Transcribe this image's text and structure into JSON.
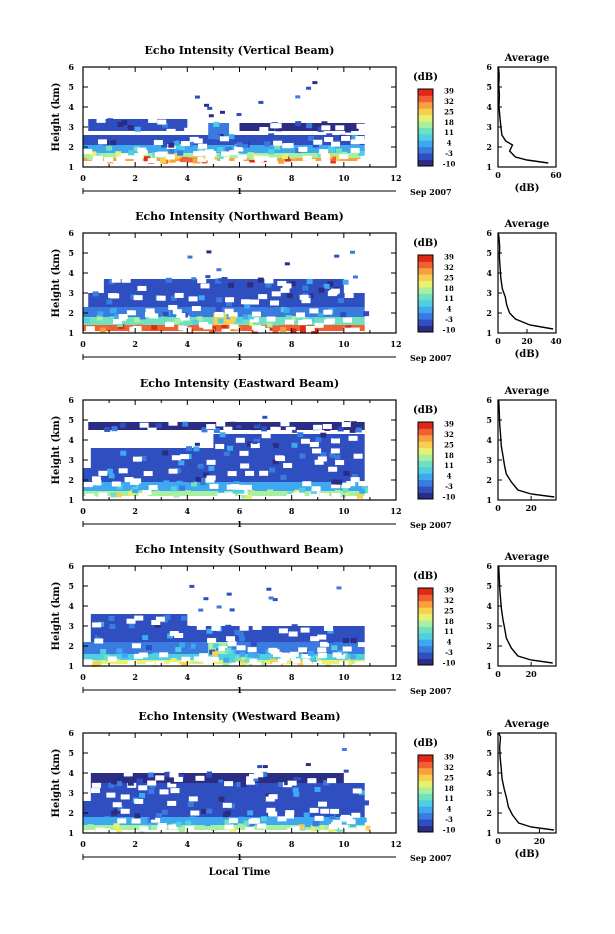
{
  "xlabel_common": "Local Time",
  "date_label": "Sep 2007",
  "colorbar": {
    "unit": "(dB)",
    "ticks": [
      "39",
      "32",
      "25",
      "18",
      "11",
      "4",
      "-3",
      "-10"
    ],
    "colors": [
      "#2b2c83",
      "#2f4fc0",
      "#3b7be0",
      "#3ea8f0",
      "#4fcfe0",
      "#6fe0c0",
      "#a8f0a0",
      "#e8f070",
      "#f8d050",
      "#f8a040",
      "#f06030",
      "#e02818"
    ]
  },
  "chart_data": [
    {
      "type": "heatmap",
      "title": "Echo Intensity (Vertical Beam)",
      "ylabel": "Height (km)",
      "xlim": [
        0,
        12
      ],
      "ylim": [
        1,
        6
      ],
      "xticks": [
        "0",
        "2",
        "4",
        "6",
        "8",
        "10",
        "12"
      ],
      "yticks": [
        "1",
        "2",
        "3",
        "4",
        "5",
        "6"
      ],
      "day_marker": "1",
      "bands": [
        {
          "y0": 1.3,
          "y1": 1.45,
          "x0": 0.0,
          "x1": 10.8,
          "level": 9
        },
        {
          "y0": 1.45,
          "y1": 1.7,
          "x0": 0.0,
          "x1": 10.8,
          "level": 6
        },
        {
          "y0": 1.7,
          "y1": 2.1,
          "x0": 0.0,
          "x1": 10.8,
          "level": 3
        },
        {
          "y0": 2.1,
          "y1": 2.6,
          "x0": 0.0,
          "x1": 10.8,
          "level": 1
        },
        {
          "y0": 2.8,
          "y1": 3.4,
          "x0": 0.2,
          "x1": 4.0,
          "level": 1
        },
        {
          "y0": 2.4,
          "y1": 3.2,
          "x0": 4.8,
          "x1": 5.6,
          "level": 2
        },
        {
          "y0": 2.8,
          "y1": 3.2,
          "x0": 6.0,
          "x1": 10.8,
          "level": 0
        }
      ],
      "average": {
        "xlim": [
          0,
          60
        ],
        "xticks": [
          "0",
          "60"
        ],
        "xlabel": "(dB)",
        "yticks": [
          "1",
          "2",
          "3",
          "4",
          "5",
          "6"
        ],
        "profile": [
          [
            52,
            1.2
          ],
          [
            30,
            1.35
          ],
          [
            18,
            1.5
          ],
          [
            12,
            1.8
          ],
          [
            15,
            2.1
          ],
          [
            8,
            2.3
          ],
          [
            4,
            2.6
          ],
          [
            3,
            3.0
          ],
          [
            2,
            3.5
          ],
          [
            1,
            4.0
          ],
          [
            1.5,
            4.6
          ],
          [
            0.8,
            5.1
          ],
          [
            1.2,
            5.6
          ],
          [
            0.5,
            6.0
          ]
        ]
      }
    },
    {
      "type": "heatmap",
      "title": "Echo Intensity (Northward Beam)",
      "ylabel": "Height (km)",
      "xlim": [
        0,
        12
      ],
      "ylim": [
        1,
        6
      ],
      "xticks": [
        "0",
        "2",
        "4",
        "6",
        "8",
        "10",
        "12"
      ],
      "yticks": [
        "1",
        "2",
        "3",
        "4",
        "5",
        "6"
      ],
      "day_marker": "1",
      "bands": [
        {
          "y0": 1.1,
          "y1": 1.4,
          "x0": 0.0,
          "x1": 10.8,
          "level": 10
        },
        {
          "y0": 1.4,
          "y1": 1.8,
          "x0": 0.0,
          "x1": 10.8,
          "level": 5
        },
        {
          "y0": 1.8,
          "y1": 2.3,
          "x0": 0.0,
          "x1": 10.8,
          "level": 2
        },
        {
          "y0": 2.3,
          "y1": 3.0,
          "x0": 0.2,
          "x1": 10.8,
          "level": 1
        },
        {
          "y0": 3.0,
          "y1": 3.7,
          "x0": 0.8,
          "x1": 10.0,
          "level": 1
        },
        {
          "y0": 1.4,
          "y1": 2.0,
          "x0": 5.0,
          "x1": 5.8,
          "level": 8
        }
      ],
      "average": {
        "xlim": [
          0,
          40
        ],
        "xticks": [
          "0",
          "20",
          "40"
        ],
        "xlabel": "(dB)",
        "yticks": [
          "1",
          "2",
          "3",
          "4",
          "5",
          "6"
        ],
        "profile": [
          [
            38,
            1.2
          ],
          [
            22,
            1.4
          ],
          [
            12,
            1.7
          ],
          [
            8,
            2.0
          ],
          [
            6,
            2.4
          ],
          [
            5,
            2.8
          ],
          [
            3,
            3.2
          ],
          [
            2,
            3.7
          ],
          [
            1.5,
            4.2
          ],
          [
            1,
            4.8
          ],
          [
            1.2,
            5.3
          ],
          [
            0.6,
            5.8
          ],
          [
            0.3,
            6.0
          ]
        ]
      }
    },
    {
      "type": "heatmap",
      "title": "Echo Intensity (Eastward Beam)",
      "ylabel": "Height (km)",
      "xlim": [
        0,
        12
      ],
      "ylim": [
        1,
        6
      ],
      "xticks": [
        "0",
        "2",
        "4",
        "6",
        "8",
        "10",
        "12"
      ],
      "yticks": [
        "1",
        "2",
        "3",
        "4",
        "5",
        "6"
      ],
      "day_marker": "1",
      "bands": [
        {
          "y0": 1.2,
          "y1": 1.45,
          "x0": 0.0,
          "x1": 10.8,
          "level": 6
        },
        {
          "y0": 1.45,
          "y1": 1.9,
          "x0": 0.0,
          "x1": 10.8,
          "level": 3
        },
        {
          "y0": 1.9,
          "y1": 2.6,
          "x0": 0.0,
          "x1": 10.8,
          "level": 1
        },
        {
          "y0": 2.6,
          "y1": 3.6,
          "x0": 0.3,
          "x1": 10.8,
          "level": 1
        },
        {
          "y0": 3.6,
          "y1": 4.3,
          "x0": 5.0,
          "x1": 10.8,
          "level": 1
        },
        {
          "y0": 4.5,
          "y1": 4.9,
          "x0": 0.2,
          "x1": 10.8,
          "level": 0
        }
      ],
      "average": {
        "xlim": [
          0,
          35
        ],
        "xticks": [
          "0",
          "20"
        ],
        "xlabel": "",
        "yticks": [
          "1",
          "2",
          "3",
          "4",
          "5",
          "6"
        ],
        "profile": [
          [
            34,
            1.15
          ],
          [
            20,
            1.3
          ],
          [
            12,
            1.5
          ],
          [
            8,
            1.9
          ],
          [
            5,
            2.3
          ],
          [
            4,
            2.7
          ],
          [
            3,
            3.2
          ],
          [
            2,
            3.7
          ],
          [
            1.5,
            4.3
          ],
          [
            1,
            4.8
          ],
          [
            0.8,
            5.4
          ],
          [
            0.4,
            6.0
          ]
        ]
      }
    },
    {
      "type": "heatmap",
      "title": "Echo Intensity (Southward Beam)",
      "ylabel": "Height (km)",
      "xlim": [
        0,
        12
      ],
      "ylim": [
        1,
        6
      ],
      "xticks": [
        "0",
        "2",
        "4",
        "6",
        "8",
        "10",
        "12"
      ],
      "yticks": [
        "1",
        "2",
        "3",
        "4",
        "5",
        "6"
      ],
      "day_marker": "1",
      "bands": [
        {
          "y0": 1.1,
          "y1": 1.3,
          "x0": 0.0,
          "x1": 10.8,
          "level": 7
        },
        {
          "y0": 1.3,
          "y1": 1.6,
          "x0": 0.0,
          "x1": 10.8,
          "level": 4
        },
        {
          "y0": 1.6,
          "y1": 2.2,
          "x0": 0.0,
          "x1": 10.8,
          "level": 2
        },
        {
          "y0": 2.2,
          "y1": 3.0,
          "x0": 0.3,
          "x1": 10.8,
          "level": 1
        },
        {
          "y0": 3.0,
          "y1": 3.6,
          "x0": 0.3,
          "x1": 4.0,
          "level": 1
        },
        {
          "y0": 1.6,
          "y1": 2.2,
          "x0": 4.8,
          "x1": 5.6,
          "level": 6
        }
      ],
      "average": {
        "xlim": [
          0,
          35
        ],
        "xticks": [
          "0",
          "20"
        ],
        "xlabel": "",
        "yticks": [
          "1",
          "2",
          "3",
          "4",
          "5",
          "6"
        ],
        "profile": [
          [
            33,
            1.15
          ],
          [
            20,
            1.3
          ],
          [
            12,
            1.5
          ],
          [
            8,
            1.9
          ],
          [
            5,
            2.4
          ],
          [
            4,
            2.9
          ],
          [
            3,
            3.3
          ],
          [
            2,
            3.9
          ],
          [
            1.5,
            4.4
          ],
          [
            1,
            4.9
          ],
          [
            0.7,
            5.5
          ],
          [
            0.4,
            6.0
          ]
        ]
      }
    },
    {
      "type": "heatmap",
      "title": "Echo Intensity (Westward Beam)",
      "ylabel": "Height (km)",
      "xlabel": "Local Time",
      "xlim": [
        0,
        12
      ],
      "ylim": [
        1,
        6
      ],
      "xticks": [
        "0",
        "2",
        "4",
        "6",
        "8",
        "10",
        "12"
      ],
      "yticks": [
        "1",
        "2",
        "3",
        "4",
        "5",
        "6"
      ],
      "day_marker": "1",
      "bands": [
        {
          "y0": 1.15,
          "y1": 1.4,
          "x0": 0.0,
          "x1": 10.8,
          "level": 6
        },
        {
          "y0": 1.4,
          "y1": 1.8,
          "x0": 0.0,
          "x1": 10.8,
          "level": 3
        },
        {
          "y0": 1.8,
          "y1": 2.6,
          "x0": 0.0,
          "x1": 10.8,
          "level": 1
        },
        {
          "y0": 2.6,
          "y1": 3.5,
          "x0": 0.3,
          "x1": 10.8,
          "level": 1
        },
        {
          "y0": 3.5,
          "y1": 4.0,
          "x0": 0.3,
          "x1": 10.0,
          "level": 0
        }
      ],
      "average": {
        "xlim": [
          0,
          28
        ],
        "xticks": [
          "0",
          "20"
        ],
        "xlabel": "(dB)",
        "yticks": [
          "1",
          "2",
          "3",
          "4",
          "5",
          "6"
        ],
        "profile": [
          [
            27,
            1.15
          ],
          [
            16,
            1.3
          ],
          [
            10,
            1.5
          ],
          [
            7,
            1.9
          ],
          [
            5,
            2.3
          ],
          [
            4,
            2.8
          ],
          [
            3,
            3.2
          ],
          [
            2,
            3.7
          ],
          [
            1.5,
            4.3
          ],
          [
            1,
            4.8
          ],
          [
            0.8,
            5.3
          ],
          [
            1.2,
            5.8
          ],
          [
            0.3,
            6.0
          ]
        ]
      }
    }
  ]
}
